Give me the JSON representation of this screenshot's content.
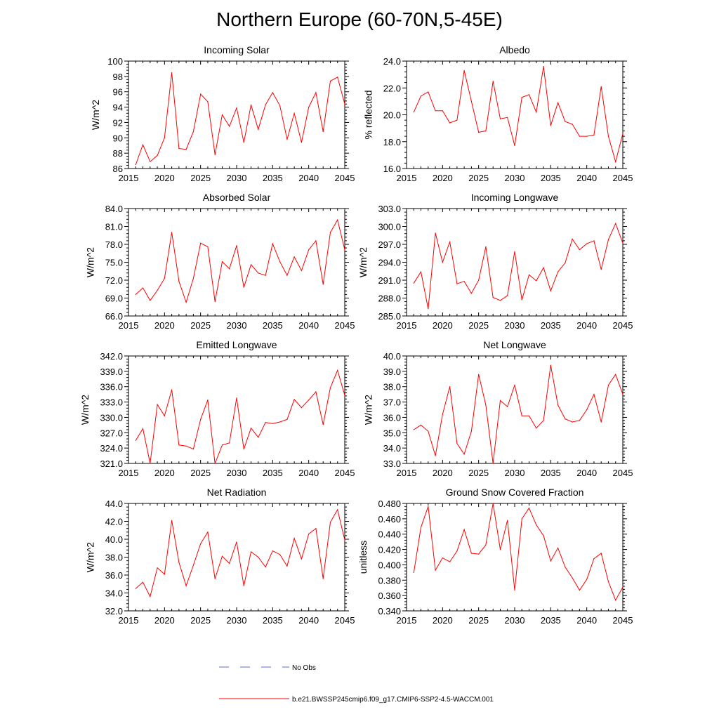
{
  "page_title": "Northern Europe (60-70N,5-45E)",
  "colors": {
    "series": "#ff0000",
    "obs": "#5b6bd8",
    "axis": "#000000"
  },
  "legend": {
    "obs_label": "No Obs",
    "model_label": "b.e21.BWSSP245cmip6.f09_g17.CMIP6-SSP2-4.5-WACCM.001"
  },
  "chart_data": [
    {
      "type": "line",
      "title": "Incoming Solar",
      "ylabel": "W/m^2",
      "xlim": [
        2015,
        2045
      ],
      "ylim": [
        86,
        100
      ],
      "xticks": [
        2015,
        2020,
        2025,
        2030,
        2035,
        2040,
        2045
      ],
      "yticks": [
        "86",
        "88",
        "90",
        "92",
        "94",
        "96",
        "98",
        "100"
      ],
      "series": [
        {
          "name": "b.e21.BWSSP245cmip6.f09_g17.CMIP6-SSP2-4.5-WACCM.001",
          "x": [
            2016,
            2017,
            2018,
            2019,
            2020,
            2021,
            2022,
            2023,
            2024,
            2025,
            2026,
            2027,
            2028,
            2029,
            2030,
            2031,
            2032,
            2033,
            2034,
            2035,
            2036,
            2037,
            2038,
            2039,
            2040,
            2041,
            2042,
            2043,
            2044,
            2045
          ],
          "y": [
            86.5,
            89.1,
            86.9,
            87.7,
            90.0,
            98.5,
            88.6,
            88.5,
            90.8,
            95.7,
            94.7,
            87.8,
            93.0,
            91.5,
            93.9,
            89.4,
            94.3,
            91.1,
            94.3,
            95.9,
            94.2,
            89.8,
            93.2,
            89.4,
            94.0,
            95.9,
            90.8,
            97.4,
            97.9,
            94.4
          ]
        }
      ]
    },
    {
      "type": "line",
      "title": "Albedo",
      "ylabel": "% reflected",
      "xlim": [
        2015,
        2045
      ],
      "ylim": [
        16,
        24
      ],
      "xticks": [
        2015,
        2020,
        2025,
        2030,
        2035,
        2040,
        2045
      ],
      "yticks": [
        "16.0",
        "18.0",
        "20.0",
        "22.0",
        "24.0"
      ],
      "series": [
        {
          "name": "b.e21.BWSSP245cmip6.f09_g17.CMIP6-SSP2-4.5-WACCM.001",
          "x": [
            2016,
            2017,
            2018,
            2019,
            2020,
            2021,
            2022,
            2023,
            2024,
            2025,
            2026,
            2027,
            2028,
            2029,
            2030,
            2031,
            2032,
            2033,
            2034,
            2035,
            2036,
            2037,
            2038,
            2039,
            2040,
            2041,
            2042,
            2043,
            2044,
            2045
          ],
          "y": [
            20.2,
            21.4,
            21.7,
            20.3,
            20.3,
            19.4,
            19.6,
            23.3,
            21.0,
            18.7,
            18.8,
            22.5,
            19.7,
            19.8,
            17.7,
            21.3,
            21.5,
            20.2,
            23.6,
            19.2,
            20.9,
            19.5,
            19.3,
            18.4,
            18.4,
            18.5,
            22.1,
            18.4,
            16.5,
            18.6
          ]
        }
      ]
    },
    {
      "type": "line",
      "title": "Absorbed Solar",
      "ylabel": "W/m^2",
      "xlim": [
        2015,
        2045
      ],
      "ylim": [
        66,
        84
      ],
      "xticks": [
        2015,
        2020,
        2025,
        2030,
        2035,
        2040,
        2045
      ],
      "yticks": [
        "66.0",
        "69.0",
        "72.0",
        "75.0",
        "78.0",
        "81.0",
        "84.0"
      ],
      "series": [
        {
          "name": "b.e21.BWSSP245cmip6.f09_g17.CMIP6-SSP2-4.5-WACCM.001",
          "x": [
            2016,
            2017,
            2018,
            2019,
            2020,
            2021,
            2022,
            2023,
            2024,
            2025,
            2026,
            2027,
            2028,
            2029,
            2030,
            2031,
            2032,
            2033,
            2034,
            2035,
            2036,
            2037,
            2038,
            2039,
            2040,
            2041,
            2042,
            2043,
            2044,
            2045
          ],
          "y": [
            69.6,
            70.7,
            68.6,
            70.3,
            72.3,
            80.0,
            71.8,
            68.3,
            72.3,
            78.2,
            77.6,
            68.4,
            75.1,
            73.9,
            77.8,
            70.8,
            74.6,
            73.2,
            72.8,
            78.1,
            75.1,
            72.8,
            75.9,
            73.6,
            77.1,
            78.6,
            71.3,
            80.0,
            82.1,
            77.1
          ]
        }
      ]
    },
    {
      "type": "line",
      "title": "Incoming Longwave",
      "ylabel": "W/m^2",
      "xlim": [
        2015,
        2045
      ],
      "ylim": [
        285,
        303
      ],
      "xticks": [
        2015,
        2020,
        2025,
        2030,
        2035,
        2040,
        2045
      ],
      "yticks": [
        "285.0",
        "288.0",
        "291.0",
        "294.0",
        "297.0",
        "300.0",
        "303.0"
      ],
      "series": [
        {
          "name": "b.e21.BWSSP245cmip6.f09_g17.CMIP6-SSP2-4.5-WACCM.001",
          "x": [
            2016,
            2017,
            2018,
            2019,
            2020,
            2021,
            2022,
            2023,
            2024,
            2025,
            2026,
            2027,
            2028,
            2029,
            2030,
            2031,
            2032,
            2033,
            2034,
            2035,
            2036,
            2037,
            2038,
            2039,
            2040,
            2041,
            2042,
            2043,
            2044,
            2045
          ],
          "y": [
            290.5,
            292.4,
            286.2,
            298.9,
            294.0,
            297.4,
            290.4,
            290.8,
            288.8,
            291.0,
            296.6,
            288.1,
            287.6,
            288.4,
            295.8,
            287.7,
            291.9,
            290.9,
            293.1,
            289.2,
            292.4,
            293.9,
            297.9,
            296.1,
            297.1,
            297.6,
            292.8,
            297.8,
            300.5,
            297.2
          ]
        }
      ]
    },
    {
      "type": "line",
      "title": "Emitted Longwave",
      "ylabel": "W/m^2",
      "xlim": [
        2015,
        2045
      ],
      "ylim": [
        321,
        342
      ],
      "xticks": [
        2015,
        2020,
        2025,
        2030,
        2035,
        2040,
        2045
      ],
      "yticks": [
        "321.0",
        "324.0",
        "327.0",
        "330.0",
        "333.0",
        "336.0",
        "339.0",
        "342.0"
      ],
      "series": [
        {
          "name": "b.e21.BWSSP245cmip6.f09_g17.CMIP6-SSP2-4.5-WACCM.001",
          "x": [
            2016,
            2017,
            2018,
            2019,
            2020,
            2021,
            2022,
            2023,
            2024,
            2025,
            2026,
            2027,
            2028,
            2029,
            2030,
            2031,
            2032,
            2033,
            2034,
            2035,
            2036,
            2037,
            2038,
            2039,
            2040,
            2041,
            2042,
            2043,
            2044,
            2045
          ],
          "y": [
            325.5,
            327.8,
            321.0,
            332.5,
            330.3,
            335.4,
            324.6,
            324.4,
            323.8,
            329.6,
            333.4,
            321.0,
            324.6,
            325.0,
            333.8,
            323.8,
            327.9,
            326.1,
            329.0,
            328.8,
            329.1,
            329.6,
            333.5,
            331.9,
            333.4,
            335.0,
            328.6,
            335.8,
            339.2,
            334.3
          ]
        }
      ]
    },
    {
      "type": "line",
      "title": "Net Longwave",
      "ylabel": "W/m^2",
      "xlim": [
        2015,
        2045
      ],
      "ylim": [
        33,
        40
      ],
      "xticks": [
        2015,
        2020,
        2025,
        2030,
        2035,
        2040,
        2045
      ],
      "yticks": [
        "33.0",
        "34.0",
        "35.0",
        "36.0",
        "37.0",
        "38.0",
        "39.0",
        "40.0"
      ],
      "series": [
        {
          "name": "b.e21.BWSSP245cmip6.f09_g17.CMIP6-SSP2-4.5-WACCM.001",
          "x": [
            2016,
            2017,
            2018,
            2019,
            2020,
            2021,
            2022,
            2023,
            2024,
            2025,
            2026,
            2027,
            2028,
            2029,
            2030,
            2031,
            2032,
            2033,
            2034,
            2035,
            2036,
            2037,
            2038,
            2039,
            2040,
            2041,
            2042,
            2043,
            2044,
            2045
          ],
          "y": [
            35.2,
            35.5,
            35.1,
            33.5,
            36.2,
            38.0,
            34.3,
            33.6,
            35.1,
            38.8,
            36.8,
            33.0,
            37.1,
            36.7,
            38.1,
            36.1,
            36.1,
            35.3,
            35.8,
            39.4,
            36.8,
            35.9,
            35.7,
            35.8,
            36.5,
            37.5,
            35.7,
            38.1,
            38.8,
            37.5
          ]
        }
      ]
    },
    {
      "type": "line",
      "title": "Net Radiation",
      "ylabel": "W/m^2",
      "xlim": [
        2015,
        2045
      ],
      "ylim": [
        32,
        44
      ],
      "xticks": [
        2015,
        2020,
        2025,
        2030,
        2035,
        2040,
        2045
      ],
      "yticks": [
        "32.0",
        "34.0",
        "36.0",
        "38.0",
        "40.0",
        "42.0",
        "44.0"
      ],
      "series": [
        {
          "name": "b.e21.BWSSP245cmip6.f09_g17.CMIP6-SSP2-4.5-WACCM.001",
          "x": [
            2016,
            2017,
            2018,
            2019,
            2020,
            2021,
            2022,
            2023,
            2024,
            2025,
            2026,
            2027,
            2028,
            2029,
            2030,
            2031,
            2032,
            2033,
            2034,
            2035,
            2036,
            2037,
            2038,
            2039,
            2040,
            2041,
            2042,
            2043,
            2044,
            2045
          ],
          "y": [
            34.5,
            35.2,
            33.6,
            36.8,
            36.1,
            42.1,
            37.4,
            34.8,
            37.1,
            39.5,
            40.8,
            35.6,
            38.1,
            37.3,
            39.7,
            34.8,
            38.6,
            38.0,
            36.9,
            38.7,
            38.3,
            37.0,
            40.1,
            37.8,
            40.6,
            41.2,
            35.6,
            41.9,
            43.3,
            39.9
          ]
        }
      ]
    },
    {
      "type": "line",
      "title": "Ground Snow Covered Fraction",
      "ylabel": "unitless",
      "xlim": [
        2015,
        2045
      ],
      "ylim": [
        0.34,
        0.48
      ],
      "xticks": [
        2015,
        2020,
        2025,
        2030,
        2035,
        2040,
        2045
      ],
      "yticks": [
        "0.340",
        "0.360",
        "0.380",
        "0.400",
        "0.420",
        "0.440",
        "0.460",
        "0.480"
      ],
      "series": [
        {
          "name": "b.e21.BWSSP245cmip6.f09_g17.CMIP6-SSP2-4.5-WACCM.001",
          "x": [
            2016,
            2017,
            2018,
            2019,
            2020,
            2021,
            2022,
            2023,
            2024,
            2025,
            2026,
            2027,
            2028,
            2029,
            2030,
            2031,
            2032,
            2033,
            2034,
            2035,
            2036,
            2037,
            2038,
            2039,
            2040,
            2041,
            2042,
            2043,
            2044,
            2045
          ],
          "y": [
            0.39,
            0.449,
            0.476,
            0.393,
            0.409,
            0.404,
            0.418,
            0.446,
            0.415,
            0.414,
            0.426,
            0.48,
            0.42,
            0.458,
            0.367,
            0.46,
            0.474,
            0.452,
            0.438,
            0.405,
            0.422,
            0.397,
            0.383,
            0.367,
            0.381,
            0.408,
            0.415,
            0.378,
            0.354,
            0.371
          ]
        }
      ]
    }
  ]
}
